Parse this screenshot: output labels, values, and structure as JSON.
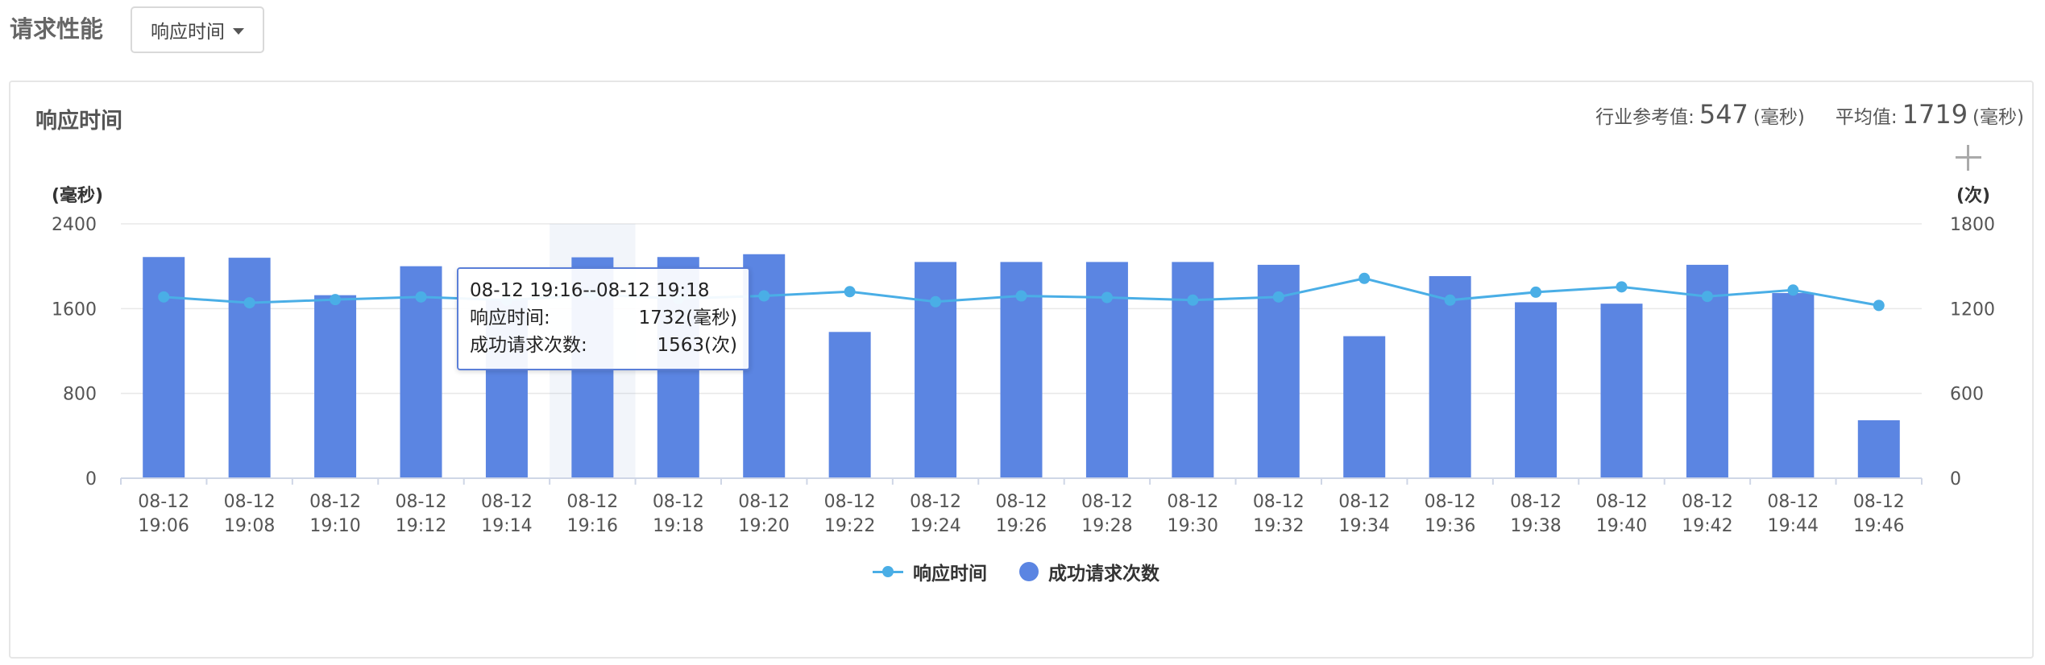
{
  "header": {
    "title": "请求性能",
    "dropdown_label": "响应时间"
  },
  "panel": {
    "title": "响应时间",
    "stats": {
      "reference_label": "行业参考值:",
      "reference_value": "547",
      "reference_unit": "(毫秒)",
      "average_label": "平均值:",
      "average_value": "1719",
      "average_unit": "(毫秒)"
    }
  },
  "colors": {
    "bar": "#5b85e2",
    "line": "#4aaee6",
    "grid": "#e8e8e8",
    "axis": "#cfd6e6"
  },
  "tooltip": {
    "title": "08-12 19:16--08-12 19:18",
    "row1_label": "响应时间:",
    "row1_value": "1732(毫秒)",
    "row2_label": "成功请求次数:",
    "row2_value": "1563(次)"
  },
  "chart_data": {
    "type": "bar",
    "categories": [
      "08-12\n19:06",
      "08-12\n19:08",
      "08-12\n19:10",
      "08-12\n19:12",
      "08-12\n19:14",
      "08-12\n19:16",
      "08-12\n19:18",
      "08-12\n19:20",
      "08-12\n19:22",
      "08-12\n19:24",
      "08-12\n19:26",
      "08-12\n19:28",
      "08-12\n19:30",
      "08-12\n19:32",
      "08-12\n19:34",
      "08-12\n19:36",
      "08-12\n19:38",
      "08-12\n19:40",
      "08-12\n19:42",
      "08-12\n19:44",
      "08-12\n19:46"
    ],
    "series": [
      {
        "name": "成功请求次数",
        "type": "bar",
        "axis": "right",
        "values": [
          1565,
          1560,
          1295,
          1500,
          1270,
          1563,
          1565,
          1585,
          1035,
          1530,
          1530,
          1530,
          1530,
          1510,
          1005,
          1430,
          1245,
          1235,
          1510,
          1310,
          410
        ]
      },
      {
        "name": "响应时间",
        "type": "line",
        "axis": "left",
        "values": [
          1710,
          1655,
          1685,
          1710,
          1680,
          1732,
          1695,
          1720,
          1760,
          1665,
          1720,
          1705,
          1680,
          1710,
          1885,
          1680,
          1755,
          1805,
          1715,
          1775,
          1630
        ]
      }
    ],
    "left_axis": {
      "label": "(毫秒)",
      "ylim": [
        0,
        2400
      ],
      "ticks": [
        "0",
        "800",
        "1600",
        "2400"
      ]
    },
    "right_axis": {
      "label": "(次)",
      "ylim": [
        0,
        1800
      ],
      "ticks": [
        "0",
        "600",
        "1200",
        "1800"
      ]
    },
    "grid": true,
    "legend_placement": "bottom-center"
  }
}
